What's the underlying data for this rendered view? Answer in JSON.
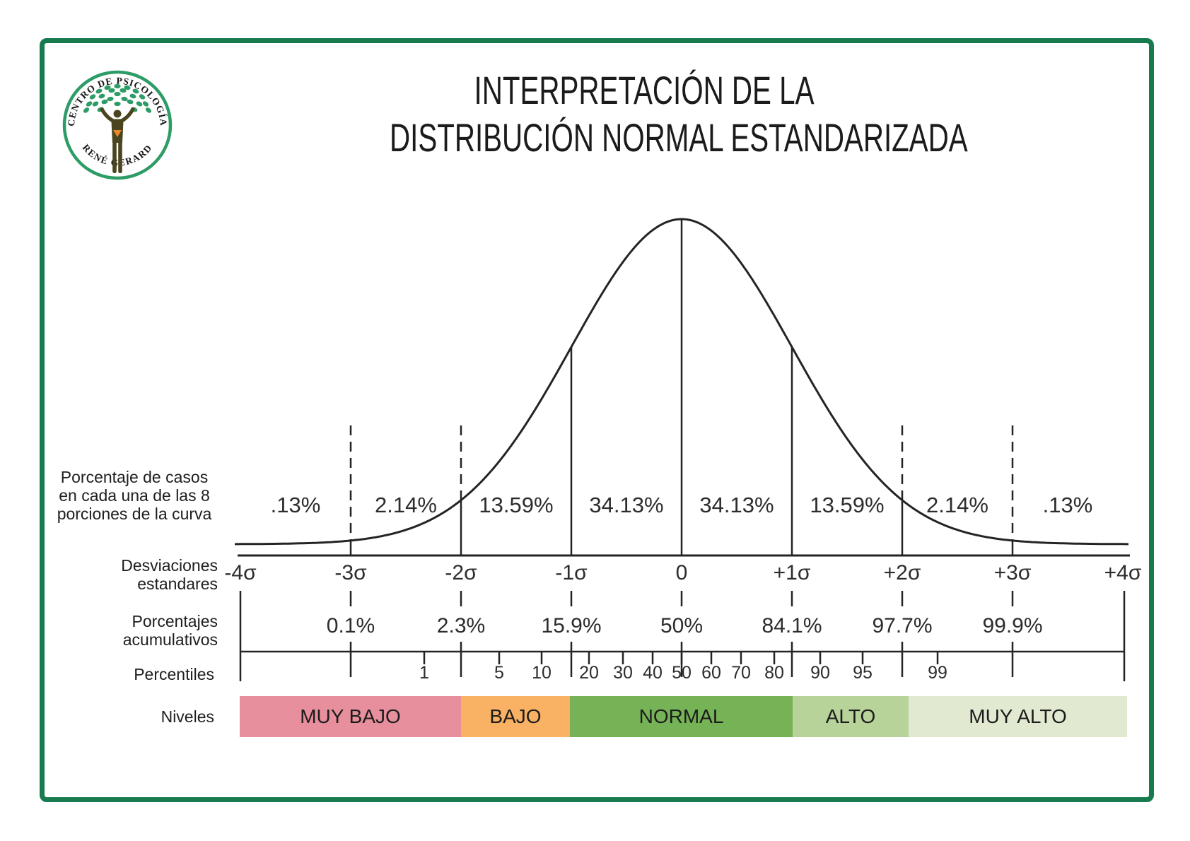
{
  "frame": {
    "border_color": "#177b4f"
  },
  "logo": {
    "arc_top": "CENTRO DE PSICOLOGÍA",
    "arc_bottom": "RENÉ GERARD",
    "ring_color": "#2d9c66",
    "leaf_color": "#2d9c66",
    "body_color": "#4a441f",
    "heart_color": "#e8882b"
  },
  "title": {
    "line1": "INTERPRETACIÓN DE LA",
    "line2": "DISTRIBUCIÓN NORMAL ESTANDARIZADA"
  },
  "row_labels": {
    "portions": [
      "Porcentaje de casos",
      "en cada una de las 8",
      "porciones de la curva"
    ],
    "deviations": [
      "Desviaciones",
      "estandares"
    ],
    "cumulative": [
      "Porcentajes",
      "acumulativos"
    ],
    "percentiles": "Percentiles",
    "levels": "Niveles"
  },
  "chart_data": {
    "type": "line",
    "title": "INTERPRETACIÓN DE LA DISTRIBUCIÓN NORMAL ESTANDARIZADA",
    "distribution": "standard normal (Gaussian) curve",
    "segment_percentages": {
      "labels": [
        ".13%",
        "2.14%",
        "13.59%",
        "34.13%",
        "34.13%",
        "13.59%",
        "2.14%",
        ".13%"
      ],
      "values": [
        0.13,
        2.14,
        13.59,
        34.13,
        34.13,
        13.59,
        2.14,
        0.13
      ],
      "between_sigmas": [
        "-4σ/-3σ",
        "-3σ/-2σ",
        "-2σ/-1σ",
        "-1σ/0",
        "0/+1σ",
        "+1σ/+2σ",
        "+2σ/+3σ",
        "+3σ/+4σ"
      ]
    },
    "sigma_ticks": [
      "-4σ",
      "-3σ",
      "-2σ",
      "-1σ",
      "0",
      "+1σ",
      "+2σ",
      "+3σ",
      "+4σ"
    ],
    "cumulative_percentages": {
      "labels": [
        "0.1%",
        "2.3%",
        "15.9%",
        "50%",
        "84.1%",
        "97.7%",
        "99.9%"
      ],
      "values": [
        0.1,
        2.3,
        15.9,
        50,
        84.1,
        97.7,
        99.9
      ],
      "at_sigma": [
        "-3σ",
        "-2σ",
        "-1σ",
        "0",
        "+1σ",
        "+2σ",
        "+3σ"
      ]
    },
    "percentiles": [
      1,
      5,
      10,
      20,
      30,
      40,
      50,
      60,
      70,
      80,
      90,
      95,
      99
    ],
    "levels": [
      {
        "label": "MUY BAJO",
        "sigma_range": "-4σ to -2σ",
        "color": "#e88f9d"
      },
      {
        "label": "BAJO",
        "sigma_range": "-2σ to -1σ",
        "color": "#f9b164"
      },
      {
        "label": "NORMAL",
        "sigma_range": "-1σ to +1σ",
        "color": "#76b357"
      },
      {
        "label": "ALTO",
        "sigma_range": "+1σ to +2σ",
        "color": "#b7d39a"
      },
      {
        "label": "MUY ALTO",
        "sigma_range": "+2σ to +4σ",
        "color": "#e2e9d1"
      }
    ],
    "axis_range_sigma": [
      -4,
      4
    ],
    "grid": false,
    "legend": false
  }
}
